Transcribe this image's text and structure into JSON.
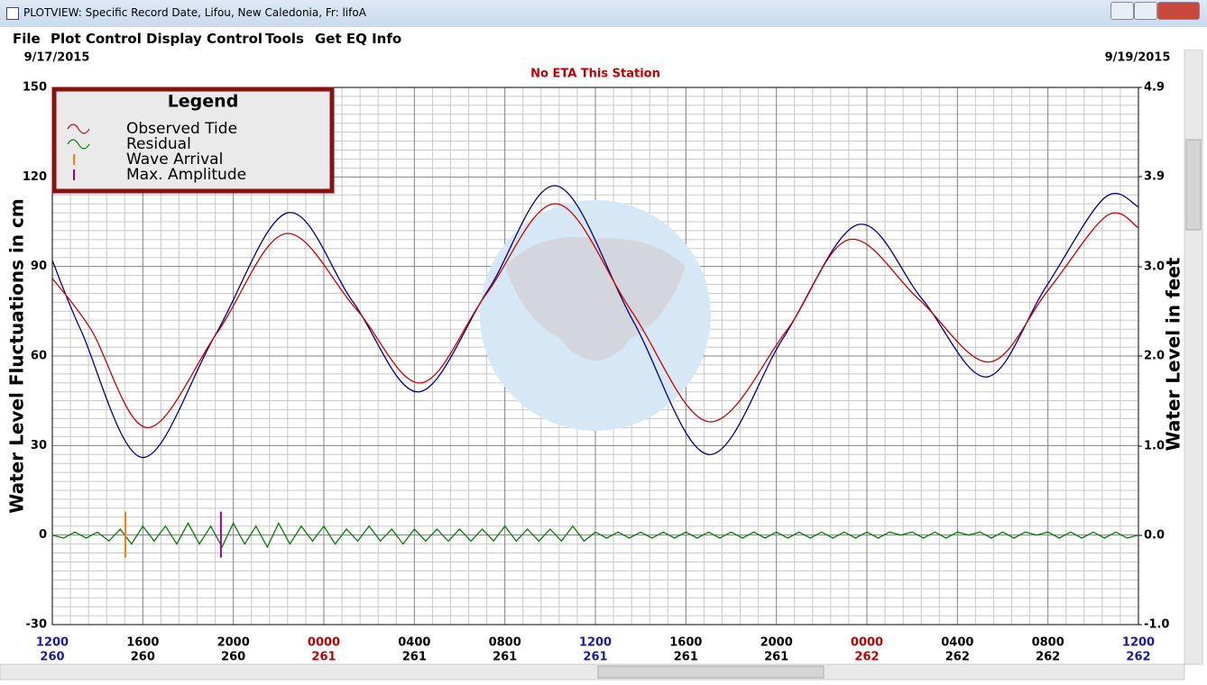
{
  "window": {
    "title": "PLOTVIEW: Specific Record Date, Lifou, New Caledonia, Fr: lifoA"
  },
  "menu": [
    "File",
    "Plot Control",
    "Display Control",
    "Tools",
    "Get EQ Info"
  ],
  "chart_data": {
    "type": "line",
    "title": "No ETA This Station",
    "start_date": "9/17/2015",
    "end_date": "9/19/2015",
    "ylabel": "Water Level Fluctuations in cm",
    "y2label": "Water Level in feet",
    "legend_title": "Legend",
    "series": [
      {
        "name": "Observed Tide",
        "color": "#d00000",
        "x": [
          0,
          1.7,
          4.2,
          7.3,
          10.3,
          13.4,
          16.3,
          19.2,
          22.3,
          25.6,
          29,
          32.4,
          35.2,
          38.3,
          41.4,
          44,
          46.6,
          48
        ],
        "values": [
          86,
          69,
          36,
          68,
          101,
          76,
          51,
          81,
          111,
          75,
          38,
          68,
          99,
          79,
          58,
          82,
          107,
          103
        ]
      },
      {
        "name": "Residual",
        "color": "#008000",
        "x": [
          0,
          0.5,
          1,
          1.5,
          2,
          2.5,
          3,
          3.5,
          4,
          4.5,
          5,
          5.5,
          6,
          6.5,
          7,
          7.5,
          8,
          8.5,
          9,
          9.5,
          10,
          10.5,
          11,
          11.5,
          12,
          12.5,
          13,
          13.5,
          14,
          14.5,
          15,
          15.5,
          16,
          16.5,
          17,
          17.5,
          18,
          18.5,
          19,
          19.5,
          20,
          20.5,
          21,
          21.5,
          22,
          22.5,
          23,
          23.5,
          24,
          24.5,
          25,
          25.5,
          26,
          26.5,
          27,
          27.5,
          28,
          28.5,
          29,
          29.5,
          30,
          30.5,
          31,
          31.5,
          32,
          32.5,
          33,
          33.5,
          34,
          34.5,
          35,
          35.5,
          36,
          36.5,
          37,
          37.5,
          38,
          38.5,
          39,
          39.5,
          40,
          40.5,
          41,
          41.5,
          42,
          42.5,
          43,
          43.5,
          44,
          44.5,
          45,
          45.5,
          46,
          46.5,
          47,
          47.5,
          48
        ],
        "values": [
          0,
          -1,
          1,
          -1,
          1,
          -2,
          2,
          -3,
          3,
          -2,
          3,
          -3,
          4,
          -3,
          3,
          -4,
          4,
          -3,
          3,
          -4,
          4,
          -3,
          3,
          -2,
          3,
          -3,
          2,
          -2,
          3,
          -2,
          2,
          -3,
          2,
          -2,
          2,
          -2,
          2,
          -2,
          2,
          -2,
          3,
          -2,
          2,
          -2,
          2,
          -2,
          3,
          -2,
          1,
          -1,
          1,
          -1,
          1,
          -1,
          1,
          -1,
          1,
          -1,
          1,
          -1,
          1,
          -1,
          1,
          -1,
          1,
          -1,
          1,
          -1,
          1,
          -1,
          1,
          -1,
          1,
          -1,
          1,
          0,
          1,
          -1,
          1,
          -1,
          1,
          0,
          1,
          -1,
          1,
          -1,
          1,
          0,
          1,
          -1,
          1,
          -1,
          1,
          -1,
          1,
          -1,
          0
        ]
      },
      {
        "color": "#00008b",
        "x": [
          0,
          1.3,
          4,
          7.2,
          10.4,
          13.3,
          16.2,
          19.25,
          22.3,
          25.65,
          29,
          32.3,
          35.6,
          38.45,
          41.3,
          43.9,
          46.5,
          48
        ],
        "values": [
          92,
          68,
          26,
          67,
          108,
          78,
          48,
          82,
          117,
          72,
          27,
          66,
          104,
          79,
          53,
          83,
          113,
          110
        ]
      }
    ],
    "markers": [
      {
        "name": "Wave Arrival",
        "color": "#ff8000",
        "x": 3.23
      },
      {
        "name": "Max. Amplitude",
        "color": "#a000a0",
        "x": 7.45
      }
    ],
    "xlim": [
      0,
      48
    ],
    "xticks": [
      {
        "value": 0,
        "label": "1200"
      },
      {
        "value": 4,
        "label": "1600"
      },
      {
        "value": 8,
        "label": "2000"
      },
      {
        "value": 12,
        "label": "0000"
      },
      {
        "value": 16,
        "label": "0400"
      },
      {
        "value": 20,
        "label": "0800"
      },
      {
        "value": 24,
        "label": "1200"
      },
      {
        "value": 28,
        "label": "1600"
      },
      {
        "value": 32,
        "label": "2000"
      },
      {
        "value": 36,
        "label": "0000"
      },
      {
        "value": 40,
        "label": "0400"
      },
      {
        "value": 44,
        "label": "0800"
      },
      {
        "value": 48,
        "label": "1200"
      }
    ],
    "xtick_days": [
      "260",
      "260",
      "260",
      "261",
      "261",
      "261",
      "261",
      "261",
      "261",
      "262",
      "262",
      "262",
      "262"
    ],
    "xtick_colors": [
      "#1a1aa0",
      "#000000",
      "#000000",
      "#c00000",
      "#000000",
      "#000000",
      "#1a1aa0",
      "#000000",
      "#000000",
      "#c00000",
      "#000000",
      "#000000",
      "#1a1aa0"
    ],
    "ylim": [
      -30,
      150
    ],
    "yticks": [
      -30,
      0,
      30,
      60,
      90,
      120,
      150
    ],
    "y2lim": [
      -0.98,
      4.92
    ],
    "y2ticks": [
      {
        "value": -0.98,
        "label": "-1.0"
      },
      {
        "value": 0,
        "label": "0.0"
      },
      {
        "value": 0.98,
        "label": "1.0"
      },
      {
        "value": 1.97,
        "label": "2.0"
      },
      {
        "value": 2.95,
        "label": "3.0"
      },
      {
        "value": 3.94,
        "label": "3.9"
      },
      {
        "value": 4.92,
        "label": "4.9"
      }
    ],
    "grid": true,
    "minor_grid": true
  }
}
